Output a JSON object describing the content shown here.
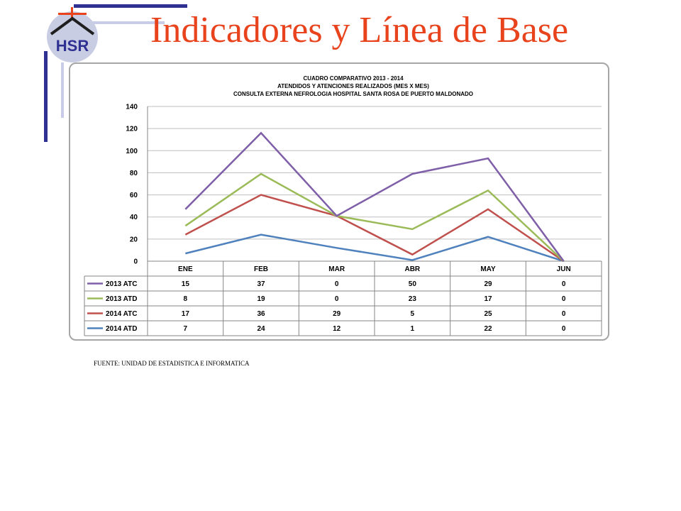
{
  "slide": {
    "title": "Indicadores y Línea de Base",
    "source": "FUENTE: UNIDAD DE ESTADISTICA E INFORMATICA",
    "logo_text": "HSR",
    "accent_color": "#e8431c",
    "logo_icon": "hospital-logo-icon"
  },
  "chart_data": {
    "type": "line",
    "stacked": true,
    "title_lines": [
      "CUADRO COMPARATIVO 2013 - 2014",
      "ATENDIDOS Y ATENCIONES  REALIZADOS (MES X MES)",
      "CONSULTA EXTERNA NEFROLOGIA HOSPITAL SANTA ROSA DE PUERTO MALDONADO"
    ],
    "categories": [
      "ENE",
      "FEB",
      "MAR",
      "ABR",
      "MAY",
      "JUN"
    ],
    "ylim": [
      0,
      140
    ],
    "yticks": [
      0,
      20,
      40,
      60,
      80,
      100,
      120,
      140
    ],
    "grid": true,
    "legend": "data-table",
    "series": [
      {
        "name": "2013 ATC",
        "values": [
          15,
          37,
          0,
          50,
          29,
          0
        ],
        "color": "#7f5fa8"
      },
      {
        "name": "2013 ATD",
        "values": [
          8,
          19,
          0,
          23,
          17,
          0
        ],
        "color": "#9bbb59"
      },
      {
        "name": "2014 ATC",
        "values": [
          17,
          36,
          29,
          5,
          25,
          0
        ],
        "color": "#c0504d"
      },
      {
        "name": "2014 ATD",
        "values": [
          7,
          24,
          12,
          1,
          22,
          0
        ],
        "color": "#4f81bd"
      }
    ]
  }
}
